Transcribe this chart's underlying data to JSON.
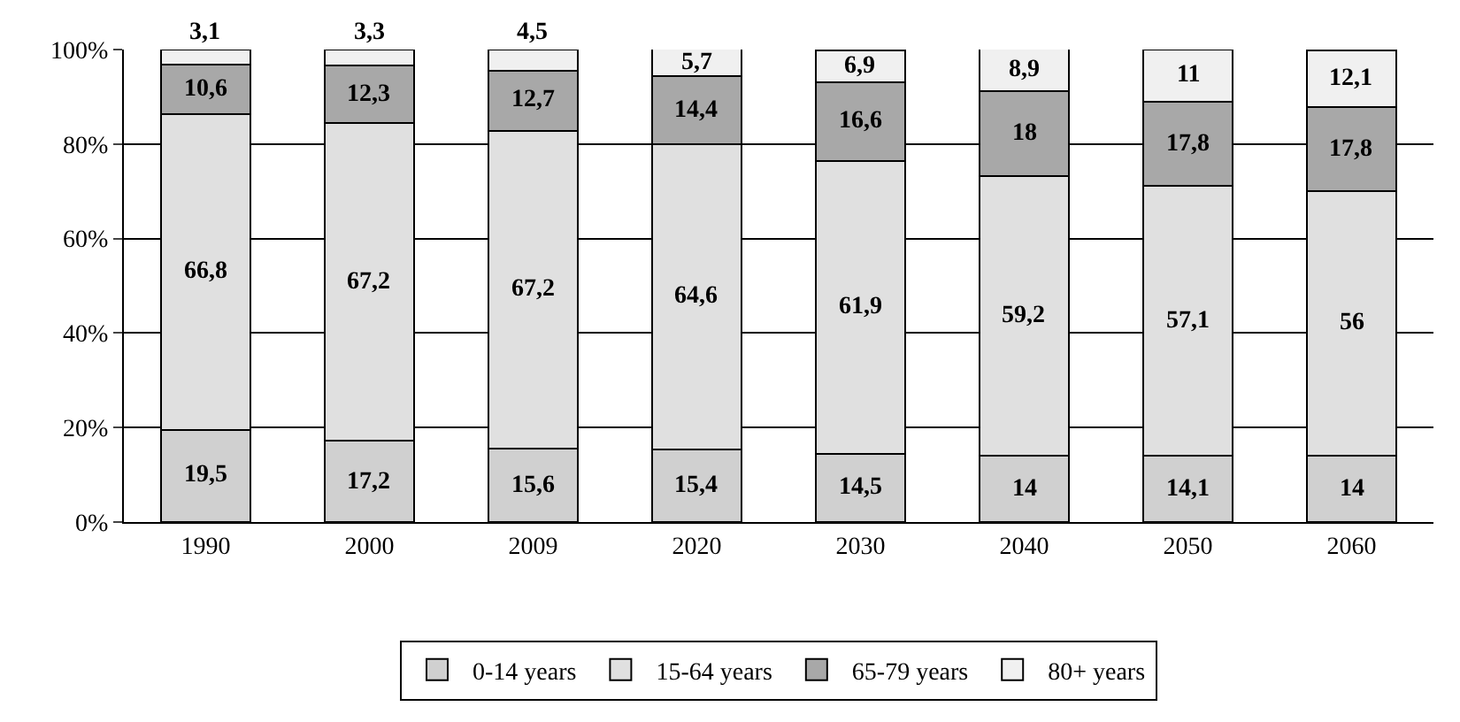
{
  "chart_data": {
    "type": "bar",
    "stacked": true,
    "categories": [
      "1990",
      "2000",
      "2009",
      "2020",
      "2030",
      "2040",
      "2050",
      "2060"
    ],
    "series": [
      {
        "name": "0-14 years",
        "color": "#d0d0d0",
        "values": [
          19.5,
          17.2,
          15.6,
          15.4,
          14.5,
          14,
          14.1,
          14
        ],
        "value_labels": [
          "19,5",
          "17,2",
          "15,6",
          "15,4",
          "14,5",
          "14",
          "14,1",
          "14"
        ]
      },
      {
        "name": "15-64 years",
        "color": "#e0e0e0",
        "values": [
          66.8,
          67.2,
          67.2,
          64.6,
          61.9,
          59.2,
          57.1,
          56
        ],
        "value_labels": [
          "66,8",
          "67,2",
          "67,2",
          "64,6",
          "61,9",
          "59,2",
          "57,1",
          "56"
        ]
      },
      {
        "name": "65-79 years",
        "color": "#a8a8a8",
        "values": [
          10.6,
          12.3,
          12.7,
          14.4,
          16.6,
          18,
          17.8,
          17.8
        ],
        "value_labels": [
          "10,6",
          "12,3",
          "12,7",
          "14,4",
          "16,6",
          "18",
          "17,8",
          "17,8"
        ]
      },
      {
        "name": "80+ years",
        "color": "#f0f0f0",
        "values": [
          3.1,
          3.3,
          4.5,
          5.7,
          6.9,
          8.9,
          11,
          12.1
        ],
        "value_labels": [
          "3,1",
          "3,3",
          "4,5",
          "5,7",
          "6,9",
          "8,9",
          "11",
          "12,1"
        ]
      }
    ],
    "ylim": [
      0,
      100
    ],
    "yticks": [
      {
        "value": 0,
        "label": "0%"
      },
      {
        "value": 20,
        "label": "20%"
      },
      {
        "value": 40,
        "label": "40%"
      },
      {
        "value": 60,
        "label": "60%"
      },
      {
        "value": 80,
        "label": "80%"
      },
      {
        "value": 100,
        "label": "100%"
      }
    ],
    "grid": "y",
    "legend": "bottom"
  }
}
